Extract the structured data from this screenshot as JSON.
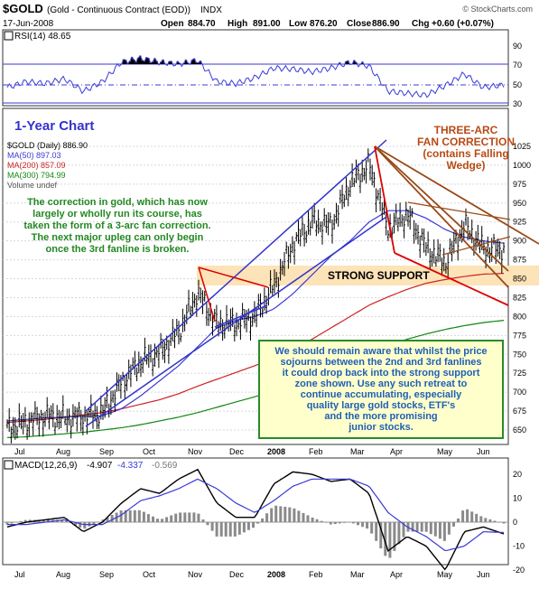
{
  "header": {
    "symbol": "$GOLD",
    "name": "(Gold - Continuous Contract (EOD))",
    "exchange": "INDX",
    "watermark": "© StockCharts.com",
    "date": "17-Jun-2008",
    "open_label": "Open",
    "open": "884.70",
    "high_label": "High",
    "high": "891.00",
    "low_label": "Low",
    "low": "876.20",
    "close_label": "Close",
    "close": "886.90",
    "chg_label": "Chg",
    "chg": "+0.60 (+0.07%)"
  },
  "rsi_panel": {
    "label": "RSI(14) 48.65",
    "ticks": [
      "90",
      "70",
      "50",
      "30"
    ]
  },
  "price_panel": {
    "chart_title": "1-Year Chart",
    "legend": [
      {
        "text": "$GOLD (Daily) 886.90",
        "color": "#000000"
      },
      {
        "text": "MA(50) 897.03",
        "color": "#3a3ad6"
      },
      {
        "text": "MA(200) 857.09",
        "color": "#cc2222"
      },
      {
        "text": "MA(300) 794.99",
        "color": "#118811"
      },
      {
        "text": "Volume undef",
        "color": "#555555"
      }
    ],
    "ticks": [
      "1025",
      "1000",
      "975",
      "950",
      "925",
      "900",
      "875",
      "850",
      "825",
      "800",
      "775",
      "750",
      "725",
      "700",
      "675",
      "650"
    ],
    "note_left": [
      "The correction in gold, which has now",
      "largely or wholly run its course, has",
      "taken the form of a 3-arc fan correction.",
      "The next major upleg can only begin",
      "once the 3rd fanline is broken."
    ],
    "arc_title": [
      "THREE-ARC",
      "FAN CORRECTION",
      "(contains Falling",
      "Wedge)"
    ],
    "support_label": "STRONG SUPPORT",
    "note_box": [
      "We should remain aware that whilst the price",
      "sojourns between the 2nd and 3rd fanlines",
      "it could drop back into the strong support",
      "zone shown. Use any such retreat to",
      "continue accumulating, especially",
      "quality large gold stocks, ETF's",
      "and the more promising",
      "junior stocks."
    ]
  },
  "macd_panel": {
    "label": "MACD(12,26,9)",
    "values": [
      "-4.907",
      "-4.337",
      "-0.569"
    ],
    "ticks": [
      "20",
      "10",
      "0",
      "-10",
      "-20"
    ]
  },
  "x_axis": [
    "Jul",
    "Aug",
    "Sep",
    "Oct",
    "Nov",
    "Dec",
    "2008",
    "Feb",
    "Mar",
    "Apr",
    "May",
    "Jun"
  ],
  "colors": {
    "price_bars": "#000000",
    "ma50": "#3a3ad6",
    "ma200": "#cc2222",
    "ma300": "#118811",
    "rsi_line": "#3a3ad6",
    "support_zone": "#fde3b8",
    "panel_bg": "#ffffff",
    "trend_blue": "#3333cc",
    "fan_brown": "#9a4a17",
    "fan_red": "#dd0000",
    "note_left": "#228822",
    "arc_title": "#b84a14",
    "chart_title": "#3333cc",
    "note_box_bg": "#ffffcc",
    "note_box_border": "#2a8a2a",
    "note_box_text": "#1e5fb5"
  },
  "chart_data": [
    {
      "type": "line",
      "title": "RSI(14) 48.65",
      "ylim": [
        0,
        100
      ],
      "x": [
        "2007-06-18",
        "2007-07-02",
        "2007-07-16",
        "2007-07-30",
        "2007-08-13",
        "2007-08-27",
        "2007-09-10",
        "2007-09-24",
        "2007-10-08",
        "2007-10-22",
        "2007-11-05",
        "2007-11-19",
        "2007-12-03",
        "2007-12-17",
        "2007-12-31",
        "2008-01-14",
        "2008-01-28",
        "2008-02-11",
        "2008-02-25",
        "2008-03-10",
        "2008-03-24",
        "2008-04-07",
        "2008-04-21",
        "2008-05-05",
        "2008-05-19",
        "2008-06-02",
        "2008-06-17"
      ],
      "series": [
        {
          "name": "RSI(14)",
          "values": [
            46,
            52,
            50,
            55,
            42,
            52,
            72,
            76,
            72,
            70,
            74,
            52,
            50,
            56,
            66,
            65,
            62,
            66,
            72,
            68,
            42,
            40,
            38,
            48,
            60,
            46,
            48.65
          ]
        }
      ]
    },
    {
      "type": "line",
      "title": "$GOLD (Daily) 886.90",
      "ylim": [
        640,
        1040
      ],
      "x": [
        "2007-06-18",
        "2007-07-02",
        "2007-07-16",
        "2007-07-30",
        "2007-08-13",
        "2007-08-27",
        "2007-09-10",
        "2007-09-24",
        "2007-10-08",
        "2007-10-22",
        "2007-11-05",
        "2007-11-19",
        "2007-12-03",
        "2007-12-17",
        "2007-12-31",
        "2008-01-14",
        "2008-01-28",
        "2008-02-11",
        "2008-02-25",
        "2008-03-10",
        "2008-03-24",
        "2008-04-07",
        "2008-04-21",
        "2008-05-05",
        "2008-05-19",
        "2008-06-02",
        "2008-06-17"
      ],
      "series": [
        {
          "name": "$GOLD (Daily) 886.90",
          "values": [
            652,
            660,
            668,
            665,
            667,
            672,
            712,
            740,
            752,
            780,
            830,
            790,
            790,
            800,
            840,
            895,
            925,
            920,
            975,
            1000,
            915,
            935,
            890,
            870,
            920,
            890,
            886.9
          ]
        },
        {
          "name": "MA(50) 897.03",
          "values": [
            662,
            664,
            666,
            667,
            668,
            669,
            678,
            695,
            715,
            735,
            760,
            785,
            795,
            800,
            810,
            830,
            855,
            880,
            900,
            925,
            940,
            940,
            930,
            915,
            905,
            900,
            897.03
          ]
        },
        {
          "name": "MA(200) 857.09",
          "values": [
            660,
            662,
            664,
            667,
            670,
            673,
            678,
            684,
            690,
            698,
            708,
            717,
            726,
            735,
            745,
            757,
            770,
            785,
            800,
            815,
            826,
            836,
            844,
            849,
            853,
            856,
            857.09
          ]
        },
        {
          "name": "MA(300) 794.99",
          "values": [
            640,
            641,
            643,
            645,
            647,
            650,
            653,
            657,
            662,
            667,
            673,
            680,
            687,
            694,
            702,
            710,
            720,
            730,
            741,
            752,
            762,
            770,
            777,
            783,
            788,
            792,
            794.99
          ]
        }
      ]
    },
    {
      "type": "line",
      "title": "MACD(12,26,9)",
      "ylim": [
        -22,
        24
      ],
      "x": [
        "2007-06-18",
        "2007-07-02",
        "2007-07-16",
        "2007-07-30",
        "2007-08-13",
        "2007-08-27",
        "2007-09-10",
        "2007-09-24",
        "2007-10-08",
        "2007-10-22",
        "2007-11-05",
        "2007-11-19",
        "2007-12-03",
        "2007-12-17",
        "2007-12-31",
        "2008-01-14",
        "2008-01-28",
        "2008-02-11",
        "2008-02-25",
        "2008-03-10",
        "2008-03-24",
        "2008-04-07",
        "2008-04-21",
        "2008-05-05",
        "2008-05-19",
        "2008-06-02",
        "2008-06-17"
      ],
      "series": [
        {
          "name": "MACD",
          "values": [
            -2,
            0,
            1,
            2,
            -4,
            0,
            8,
            14,
            12,
            18,
            22,
            8,
            2,
            2,
            16,
            21,
            20,
            17,
            18,
            12,
            -12,
            -6,
            -10,
            -20,
            -4,
            -2,
            -4.907
          ]
        },
        {
          "name": "Signal",
          "values": [
            -1,
            -1,
            0,
            1,
            -1,
            -1,
            3,
            9,
            11,
            14,
            18,
            14,
            8,
            4,
            9,
            15,
            18,
            18,
            18,
            15,
            4,
            -2,
            -6,
            -12,
            -10,
            -4,
            -4.337
          ]
        },
        {
          "name": "Histogram",
          "values": [
            -1,
            1,
            1,
            1,
            -3,
            1,
            5,
            5,
            1,
            4,
            4,
            -6,
            -6,
            -2,
            7,
            6,
            2,
            -1,
            0,
            -3,
            -16,
            -4,
            -4,
            -8,
            6,
            2,
            -0.569
          ]
        }
      ]
    }
  ]
}
